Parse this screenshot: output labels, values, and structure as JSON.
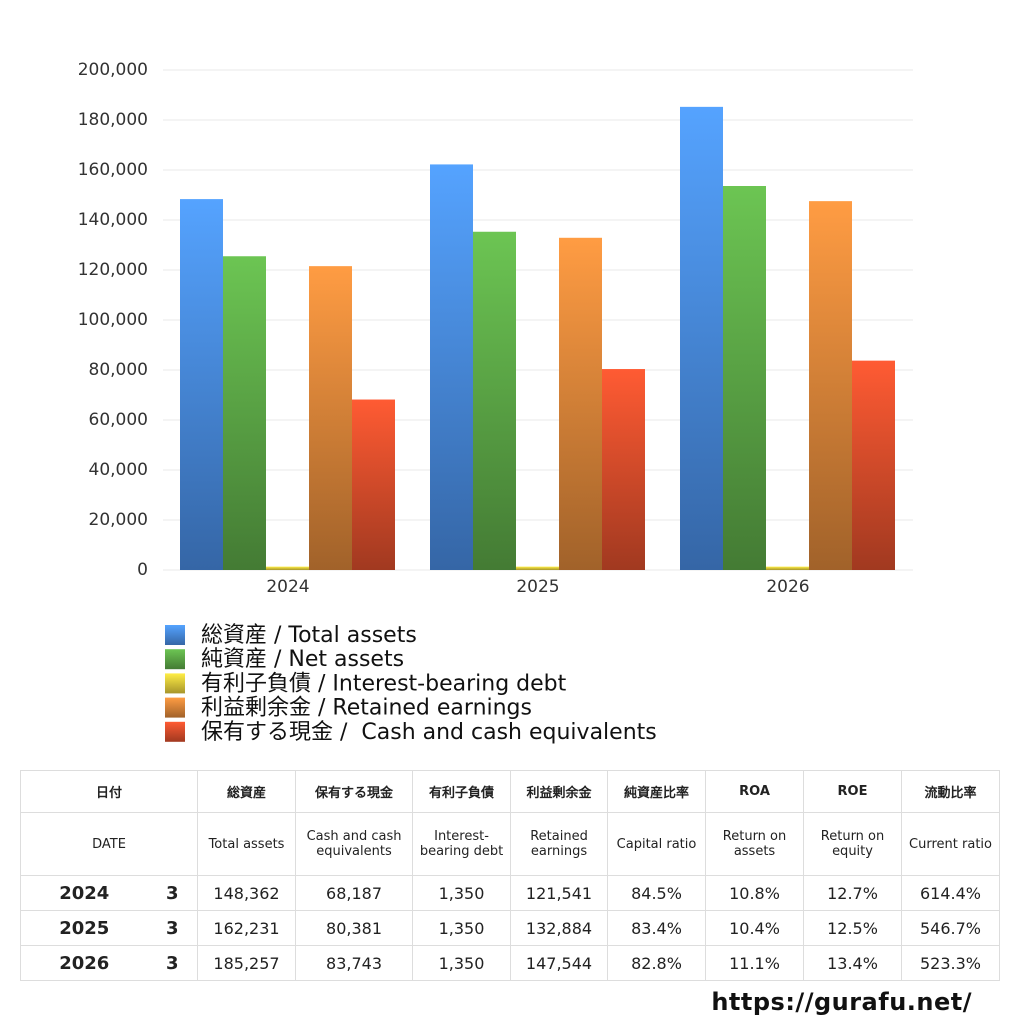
{
  "chart_data": {
    "type": "bar",
    "categories": [
      "2024",
      "2025",
      "2026"
    ],
    "series": [
      {
        "name": "総資産 / Total assets",
        "color": "#4a8ee6",
        "values": [
          148362,
          162231,
          185257
        ]
      },
      {
        "name": "純資産 / Net assets",
        "color": "#5eab48",
        "values": [
          125500,
          135300,
          153600
        ]
      },
      {
        "name": "有利子負債 / Interest-bearing debt",
        "color": "#e8cf3c",
        "values": [
          1350,
          1350,
          1350
        ]
      },
      {
        "name": "利益剰余金 / Retained earnings",
        "color": "#e0883a",
        "values": [
          121541,
          132884,
          147544
        ]
      },
      {
        "name": "保有する現金 /  Cash and cash equivalents",
        "color": "#e04f2c",
        "values": [
          68187,
          80381,
          83743
        ]
      }
    ],
    "ylim": [
      0,
      200000
    ],
    "yticks": [
      0,
      {
        "value": 20000,
        "label": "20,000"
      },
      {
        "value": 40000,
        "label": "40,000"
      },
      {
        "value": 60000,
        "label": "60,000"
      },
      {
        "value": 80000,
        "label": "80,000"
      },
      {
        "value": 100000,
        "label": "100,000"
      },
      {
        "value": 120000,
        "label": "120,000"
      },
      {
        "value": 140000,
        "label": "140,000"
      },
      {
        "value": 160000,
        "label": "160,000"
      },
      {
        "value": 180000,
        "label": "180,000"
      },
      {
        "value": 200000,
        "label": "200,000"
      }
    ],
    "grid": true
  },
  "table": {
    "header_ja": [
      "日付",
      "総資産",
      "保有する現金",
      "有利子負債",
      "利益剰余金",
      "純資産比率",
      "ROA",
      "ROE",
      "流動比率"
    ],
    "header_en": [
      "DATE",
      "Total assets",
      "Cash and cash equivalents",
      "Interest-bearing debt",
      "Retained earnings",
      "Capital ratio",
      "Return on assets",
      "Return on equity",
      "Current ratio"
    ],
    "rows": [
      [
        "2024",
        "3",
        "148,362",
        "68,187",
        "1,350",
        "121,541",
        "84.5%",
        "10.8%",
        "12.7%",
        "614.4%"
      ],
      [
        "2025",
        "3",
        "162,231",
        "80,381",
        "1,350",
        "132,884",
        "83.4%",
        "10.4%",
        "12.5%",
        "546.7%"
      ],
      [
        "2026",
        "3",
        "185,257",
        "83,743",
        "1,350",
        "147,544",
        "82.8%",
        "11.1%",
        "13.4%",
        "523.3%"
      ]
    ]
  },
  "footer": "https://gurafu.net/"
}
